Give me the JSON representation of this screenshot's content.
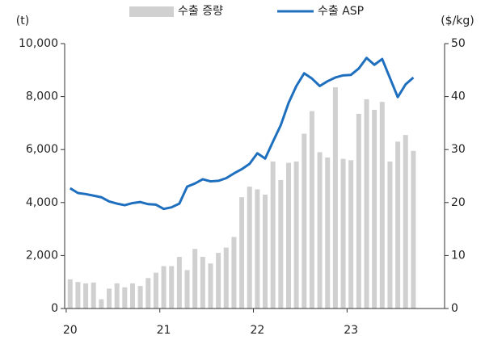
{
  "chart_data": {
    "type": "bar-line",
    "categories": [
      "20",
      null,
      null,
      null,
      null,
      null,
      null,
      null,
      null,
      null,
      null,
      null,
      "21",
      null,
      null,
      null,
      null,
      null,
      null,
      null,
      null,
      null,
      null,
      null,
      "22",
      null,
      null,
      null,
      null,
      null,
      null,
      null,
      null,
      null,
      null,
      null,
      "23",
      null,
      null,
      null,
      null,
      null,
      null,
      null,
      null
    ],
    "series": [
      {
        "name": "수출 증량",
        "type": "bar",
        "color": "#d0d0d0",
        "axis": "y",
        "values": [
          1100,
          1000,
          950,
          980,
          350,
          750,
          950,
          800,
          950,
          850,
          1150,
          1350,
          1600,
          1600,
          1950,
          1450,
          2250,
          1950,
          1700,
          2100,
          2300,
          2700,
          4200,
          4600,
          4500,
          4300,
          5550,
          4850,
          5500,
          5550,
          6600,
          7450,
          5900,
          5700,
          8350,
          5650,
          5600,
          7350,
          7900,
          7500,
          7800,
          5550,
          6300,
          6550,
          5950
        ]
      },
      {
        "name": "수출 ASP",
        "type": "line",
        "color": "#1f6fbf",
        "axis": "y2",
        "values": [
          22.7,
          21.8,
          21.6,
          21.3,
          21.0,
          20.2,
          19.8,
          19.5,
          19.9,
          20.1,
          19.7,
          19.6,
          18.8,
          19.1,
          19.8,
          23.0,
          23.6,
          24.4,
          24.0,
          24.1,
          24.6,
          25.5,
          26.3,
          27.3,
          29.3,
          28.3,
          31.5,
          34.6,
          38.8,
          42.0,
          44.4,
          43.4,
          42.0,
          42.9,
          43.6,
          44.0,
          44.1,
          45.3,
          47.3,
          46.0,
          47.1,
          43.5,
          39.9,
          42.3,
          43.6
        ]
      }
    ],
    "y_label": "(t)",
    "y2_label": "($/kg)",
    "ylim": [
      0,
      10000
    ],
    "yticks": [
      0,
      {
        "value": 2000,
        "label": "2,000"
      },
      {
        "value": 4000,
        "label": "4,000"
      },
      {
        "value": 6000,
        "label": "6,000"
      },
      {
        "value": 8000,
        "label": "8,000"
      },
      {
        "value": 10000,
        "label": "10,000"
      }
    ],
    "y2lim": [
      0,
      50
    ],
    "y2ticks": [
      0,
      10,
      20,
      30,
      40,
      50
    ],
    "legend": "top"
  }
}
